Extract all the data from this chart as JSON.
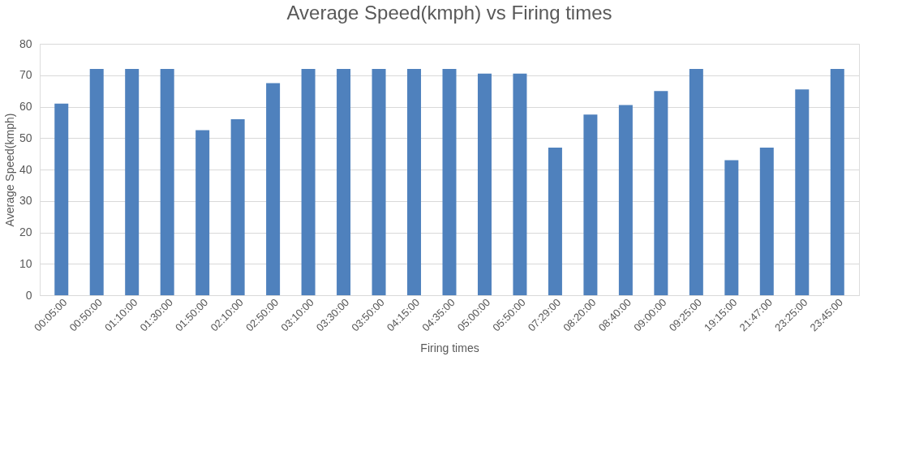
{
  "chart_data": {
    "type": "bar",
    "title": "Average Speed(kmph) vs Firing times",
    "xlabel": "Firing times",
    "ylabel": "Average Speed(kmph)",
    "categories": [
      "00:05:00",
      "00:50:00",
      "01:10:00",
      "01:30:00",
      "01:50:00",
      "02:10:00",
      "02:50:00",
      "03:10:00",
      "03:30:00",
      "03:50:00",
      "04:15:00",
      "04:35:00",
      "05:00:00",
      "05:50:00",
      "07:29:00",
      "08:20:00",
      "08:40:00",
      "09:00:00",
      "09:25:00",
      "19:15:00",
      "21:47:00",
      "23:25:00",
      "23:45:00"
    ],
    "values": [
      61,
      72,
      72,
      72,
      52.5,
      56,
      67.5,
      72,
      72,
      72,
      72,
      72,
      70.5,
      70.5,
      47,
      57.5,
      60.5,
      65,
      72,
      43,
      47,
      65.5,
      72
    ],
    "color": "#4f81bd",
    "ylim": [
      0,
      80
    ],
    "yticks": [
      0,
      10,
      20,
      30,
      40,
      50,
      60,
      70,
      80
    ],
    "grid": "y"
  }
}
